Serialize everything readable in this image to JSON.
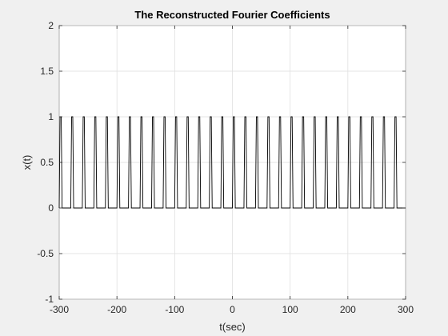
{
  "chart_data": {
    "type": "line",
    "title": "The Reconstructed Fourier Coefficients",
    "xlabel": "t(sec)",
    "ylabel": "x(t)",
    "xlim": [
      -300,
      300
    ],
    "ylim": [
      -1,
      2
    ],
    "xticks": [
      -300,
      -200,
      -100,
      0,
      100,
      200,
      300
    ],
    "yticks": [
      -1,
      -0.5,
      0,
      0.5,
      1,
      1.5,
      2
    ],
    "xtick_labels": [
      "-300",
      "-200",
      "-100",
      "0",
      "100",
      "200",
      "300"
    ],
    "ytick_labels": [
      "-1",
      "-0.5",
      "0",
      "0.5",
      "1",
      "1.5",
      "2"
    ],
    "grid": true,
    "series": [
      {
        "line_color": "#000000",
        "waveform": "periodic rectangular pulse train",
        "period": 20,
        "pulse_width": 5,
        "low": 0,
        "high": 1,
        "first_rise": -300,
        "x_range": [
          -300,
          300
        ]
      }
    ]
  }
}
